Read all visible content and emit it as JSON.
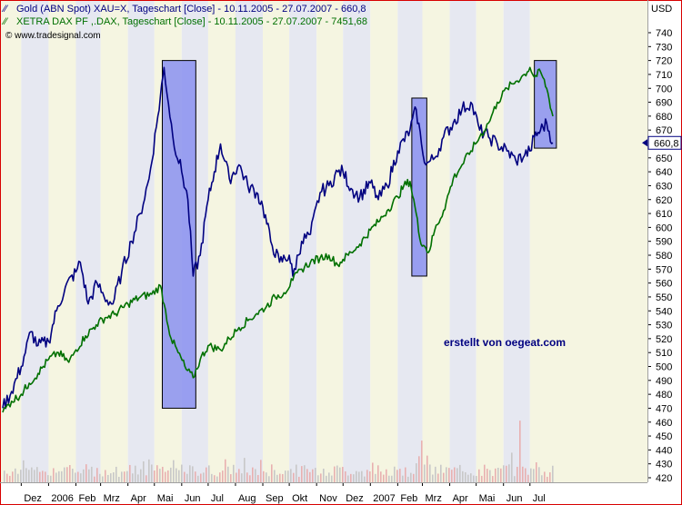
{
  "chart_data": {
    "type": "line",
    "legend": {
      "series1": "Gold (ABN Spot) XAU=X, Tageschart [Close] - 10.11.2005 - 27.07.2007 - 660,8",
      "series2": "XETRA DAX PF ,.DAX, Tageschart [Close] - 10.11.2005 - 27.07.2007 - 7451,68",
      "source": "© www.tradesignal.com"
    },
    "annotation": "erstellt von oegeat.com",
    "y_axis": {
      "unit": "USD",
      "min": 420,
      "max": 740,
      "step": 10,
      "current_value_label": "660,8",
      "current_value": 660.8
    },
    "x_axis": {
      "start": "2005-11-10",
      "end": "2007-07-27",
      "labels": [
        "Dez",
        "2006",
        "Feb",
        "Mrz",
        "Apr",
        "Mai",
        "Jun",
        "Jul",
        "Aug",
        "Sep",
        "Okt",
        "Nov",
        "Dez",
        "2007",
        "Feb",
        "Mrz",
        "Apr",
        "Mai",
        "Jun",
        "Jul"
      ],
      "label_dates": [
        "2005-12-01",
        "2006-01-01",
        "2006-02-01",
        "2006-03-01",
        "2006-04-01",
        "2006-05-01",
        "2006-06-01",
        "2006-07-01",
        "2006-08-01",
        "2006-09-01",
        "2006-10-01",
        "2006-11-01",
        "2006-12-01",
        "2007-01-01",
        "2007-02-01",
        "2007-03-01",
        "2007-04-01",
        "2007-05-01",
        "2007-06-01",
        "2007-07-01"
      ]
    },
    "series": [
      {
        "name": "Gold (ABN Spot) XAU=X",
        "color": "#000080",
        "points": [
          [
            "2005-11-10",
            470
          ],
          [
            "2005-11-20",
            482
          ],
          [
            "2005-12-01",
            500
          ],
          [
            "2005-12-12",
            525
          ],
          [
            "2005-12-20",
            515
          ],
          [
            "2006-01-01",
            518
          ],
          [
            "2006-01-10",
            540
          ],
          [
            "2006-01-20",
            557
          ],
          [
            "2006-02-01",
            568
          ],
          [
            "2006-02-06",
            575
          ],
          [
            "2006-02-15",
            545
          ],
          [
            "2006-02-25",
            560
          ],
          [
            "2006-03-05",
            550
          ],
          [
            "2006-03-15",
            545
          ],
          [
            "2006-03-25",
            568
          ],
          [
            "2006-04-05",
            590
          ],
          [
            "2006-04-15",
            610
          ],
          [
            "2006-04-25",
            635
          ],
          [
            "2006-05-05",
            680
          ],
          [
            "2006-05-12",
            715
          ],
          [
            "2006-05-22",
            665
          ],
          [
            "2006-06-01",
            640
          ],
          [
            "2006-06-08",
            620
          ],
          [
            "2006-06-14",
            565
          ],
          [
            "2006-06-22",
            580
          ],
          [
            "2006-07-01",
            620
          ],
          [
            "2006-07-08",
            640
          ],
          [
            "2006-07-15",
            660
          ],
          [
            "2006-07-25",
            635
          ],
          [
            "2006-08-05",
            645
          ],
          [
            "2006-08-15",
            630
          ],
          [
            "2006-08-25",
            625
          ],
          [
            "2006-09-01",
            615
          ],
          [
            "2006-09-10",
            590
          ],
          [
            "2006-09-20",
            575
          ],
          [
            "2006-10-01",
            580
          ],
          [
            "2006-10-05",
            565
          ],
          [
            "2006-10-15",
            590
          ],
          [
            "2006-10-25",
            595
          ],
          [
            "2006-11-05",
            625
          ],
          [
            "2006-11-15",
            630
          ],
          [
            "2006-11-25",
            640
          ],
          [
            "2006-12-01",
            640
          ],
          [
            "2006-12-10",
            628
          ],
          [
            "2006-12-20",
            622
          ],
          [
            "2007-01-01",
            632
          ],
          [
            "2007-01-10",
            620
          ],
          [
            "2007-01-20",
            630
          ],
          [
            "2007-02-01",
            655
          ],
          [
            "2007-02-15",
            670
          ],
          [
            "2007-02-22",
            685
          ],
          [
            "2007-02-28",
            660
          ],
          [
            "2007-03-05",
            645
          ],
          [
            "2007-03-15",
            650
          ],
          [
            "2007-03-25",
            665
          ],
          [
            "2007-04-05",
            675
          ],
          [
            "2007-04-15",
            685
          ],
          [
            "2007-04-25",
            690
          ],
          [
            "2007-05-05",
            670
          ],
          [
            "2007-05-15",
            665
          ],
          [
            "2007-05-25",
            660
          ],
          [
            "2007-06-05",
            655
          ],
          [
            "2007-06-15",
            648
          ],
          [
            "2007-06-25",
            652
          ],
          [
            "2007-07-01",
            655
          ],
          [
            "2007-07-06",
            665
          ],
          [
            "2007-07-13",
            670
          ],
          [
            "2007-07-20",
            675
          ],
          [
            "2007-07-27",
            660.8
          ]
        ]
      },
      {
        "name": "XETRA DAX PF ,.DAX",
        "color": "#007000",
        "points": [
          [
            "2005-11-10",
            467
          ],
          [
            "2005-11-20",
            475
          ],
          [
            "2005-12-01",
            480
          ],
          [
            "2005-12-10",
            488
          ],
          [
            "2005-12-20",
            495
          ],
          [
            "2006-01-01",
            505
          ],
          [
            "2006-01-12",
            510
          ],
          [
            "2006-01-24",
            503
          ],
          [
            "2006-02-01",
            512
          ],
          [
            "2006-02-12",
            522
          ],
          [
            "2006-02-24",
            530
          ],
          [
            "2006-03-06",
            535
          ],
          [
            "2006-03-18",
            538
          ],
          [
            "2006-04-01",
            545
          ],
          [
            "2006-04-15",
            550
          ],
          [
            "2006-04-28",
            552
          ],
          [
            "2006-05-08",
            558
          ],
          [
            "2006-05-12",
            545
          ],
          [
            "2006-05-20",
            520
          ],
          [
            "2006-05-28",
            510
          ],
          [
            "2006-06-06",
            498
          ],
          [
            "2006-06-14",
            492
          ],
          [
            "2006-06-22",
            505
          ],
          [
            "2006-07-01",
            515
          ],
          [
            "2006-07-15",
            512
          ],
          [
            "2006-07-25",
            520
          ],
          [
            "2006-08-05",
            528
          ],
          [
            "2006-08-15",
            533
          ],
          [
            "2006-08-25",
            538
          ],
          [
            "2006-09-05",
            543
          ],
          [
            "2006-09-15",
            550
          ],
          [
            "2006-09-25",
            553
          ],
          [
            "2006-10-05",
            562
          ],
          [
            "2006-10-15",
            570
          ],
          [
            "2006-10-25",
            575
          ],
          [
            "2006-11-05",
            578
          ],
          [
            "2006-11-15",
            580
          ],
          [
            "2006-11-25",
            573
          ],
          [
            "2006-12-01",
            577
          ],
          [
            "2006-12-10",
            582
          ],
          [
            "2006-12-20",
            588
          ],
          [
            "2007-01-01",
            598
          ],
          [
            "2007-01-10",
            604
          ],
          [
            "2007-01-20",
            612
          ],
          [
            "2007-02-01",
            622
          ],
          [
            "2007-02-08",
            630
          ],
          [
            "2007-02-15",
            633
          ],
          [
            "2007-02-22",
            610
          ],
          [
            "2007-02-26",
            592
          ],
          [
            "2007-03-05",
            585
          ],
          [
            "2007-03-08",
            582
          ],
          [
            "2007-03-15",
            598
          ],
          [
            "2007-03-25",
            612
          ],
          [
            "2007-04-05",
            635
          ],
          [
            "2007-04-15",
            645
          ],
          [
            "2007-04-25",
            655
          ],
          [
            "2007-05-05",
            665
          ],
          [
            "2007-05-15",
            675
          ],
          [
            "2007-05-25",
            690
          ],
          [
            "2007-06-05",
            700
          ],
          [
            "2007-06-15",
            705
          ],
          [
            "2007-06-25",
            710
          ],
          [
            "2007-07-01",
            715
          ],
          [
            "2007-07-06",
            708
          ],
          [
            "2007-07-13",
            712
          ],
          [
            "2007-07-20",
            700
          ],
          [
            "2007-07-27",
            680
          ]
        ]
      },
      {
        "name": "Volume",
        "color": "#e8b4b4",
        "type": "bar"
      }
    ],
    "highlight_boxes": [
      {
        "x1": "2006-05-10",
        "x2": "2006-06-17",
        "y_top": 720,
        "y_bottom": 470
      },
      {
        "x1": "2007-02-17",
        "x2": "2007-03-06",
        "y_top": 693,
        "y_bottom": 565
      },
      {
        "x1": "2007-07-06",
        "x2": "2007-07-31",
        "y_top": 720,
        "y_bottom": 657
      }
    ],
    "colors": {
      "band_light": "#f5f5e1",
      "band_dark": "#e6e8f1",
      "box_fill": "#8a90f0",
      "border": "#d80000"
    }
  }
}
